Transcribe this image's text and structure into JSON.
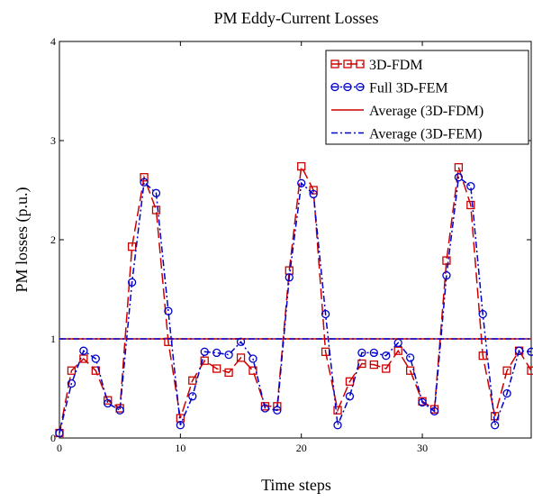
{
  "chart_data": {
    "type": "line",
    "title": "PM Eddy-Current Losses",
    "xlabel": "Time steps",
    "ylabel": "PM losses (p.u.)",
    "xlim": [
      0,
      39
    ],
    "ylim": [
      0,
      4
    ],
    "x_ticks": [
      0,
      10,
      20,
      30
    ],
    "y_ticks": [
      0,
      1,
      2,
      3,
      4
    ],
    "grid": false,
    "legend_position": "top-right",
    "x": [
      0,
      1,
      2,
      3,
      4,
      5,
      6,
      7,
      8,
      9,
      10,
      11,
      12,
      13,
      14,
      15,
      16,
      17,
      18,
      19,
      20,
      21,
      22,
      23,
      24,
      25,
      26,
      27,
      28,
      29,
      30,
      31,
      32,
      33,
      34,
      35,
      36,
      37,
      38,
      39
    ],
    "series": [
      {
        "name": "3D-FDM",
        "color": "#cc0000",
        "line": "dashed",
        "marker": "square",
        "values": [
          0.05,
          0.68,
          0.8,
          0.68,
          0.38,
          0.3,
          1.93,
          2.63,
          2.3,
          0.97,
          0.2,
          0.58,
          0.78,
          0.7,
          0.66,
          0.81,
          0.68,
          0.32,
          0.32,
          1.69,
          2.74,
          2.5,
          0.87,
          0.28,
          0.57,
          0.75,
          0.74,
          0.7,
          0.88,
          0.68,
          0.37,
          0.29,
          1.79,
          2.73,
          2.35,
          0.83,
          0.22,
          0.68,
          0.88,
          0.68
        ]
      },
      {
        "name": "Full 3D-FEM",
        "color": "#0000cc",
        "line": "dashdot",
        "marker": "circle",
        "values": [
          0.05,
          0.55,
          0.88,
          0.8,
          0.35,
          0.28,
          1.57,
          2.58,
          2.47,
          1.28,
          0.13,
          0.42,
          0.87,
          0.86,
          0.84,
          0.97,
          0.8,
          0.3,
          0.28,
          1.62,
          2.57,
          2.46,
          1.25,
          0.13,
          0.42,
          0.86,
          0.86,
          0.83,
          0.96,
          0.81,
          0.36,
          0.27,
          1.64,
          2.63,
          2.54,
          1.25,
          0.13,
          0.45,
          0.88,
          0.87
        ]
      },
      {
        "name": "Average (3D-FDM)",
        "color": "#cc0000",
        "line": "solid",
        "marker": "none",
        "constant": 1.0
      },
      {
        "name": "Average (3D-FEM)",
        "color": "#0000cc",
        "line": "dashdot",
        "marker": "none",
        "constant": 1.0
      }
    ]
  }
}
